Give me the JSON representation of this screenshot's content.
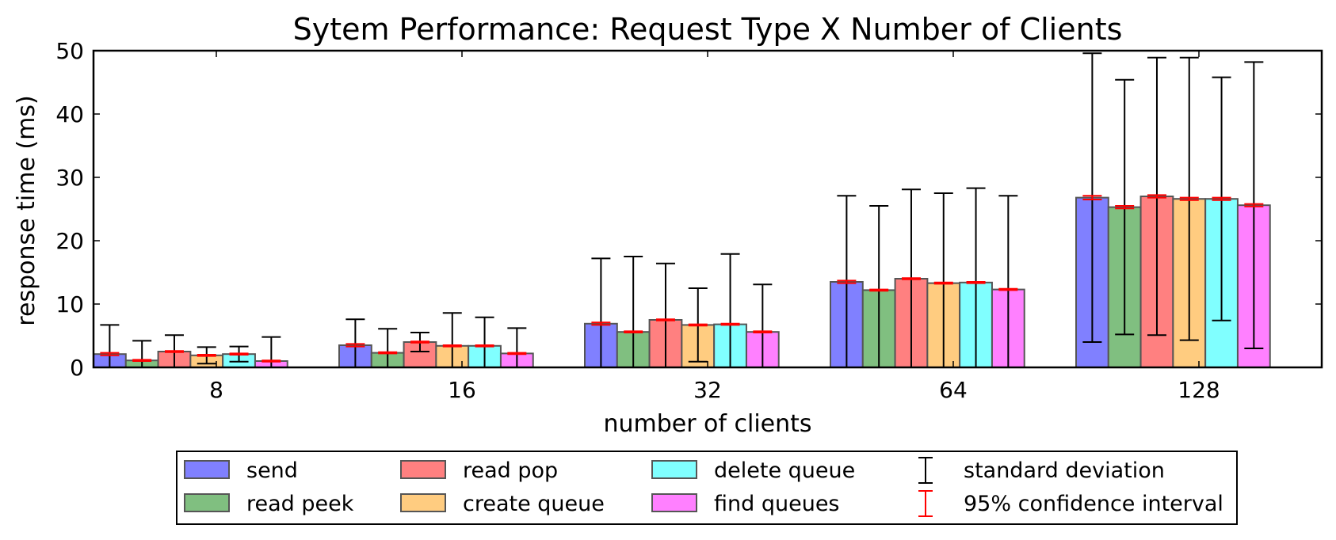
{
  "chart_data": {
    "type": "bar",
    "title": "Sytem Performance: Request Type X Number of Clients",
    "xlabel": "number of clients",
    "ylabel": "response time (ms)",
    "ylim": [
      0,
      50
    ],
    "yticks": [
      "0",
      "10",
      "20",
      "30",
      "40",
      "50"
    ],
    "grid": false,
    "legend_position": "bottom",
    "categories": [
      "8",
      "16",
      "32",
      "64",
      "128"
    ],
    "series": [
      {
        "name": "send",
        "color": "#8080ff",
        "values": [
          2.1,
          3.5,
          6.9,
          13.5,
          26.8
        ],
        "std": [
          4.6,
          4.1,
          10.3,
          13.6,
          22.8
        ],
        "ci95": [
          0.2,
          0.2,
          0.2,
          0.2,
          0.3
        ]
      },
      {
        "name": "read peek",
        "color": "#80bf80",
        "values": [
          1.1,
          2.3,
          5.6,
          12.2,
          25.3
        ],
        "std": [
          3.1,
          3.8,
          11.9,
          13.3,
          20.1
        ],
        "ci95": [
          0.1,
          0.1,
          0.1,
          0.1,
          0.2
        ]
      },
      {
        "name": "read pop",
        "color": "#ff8080",
        "values": [
          2.5,
          4.0,
          7.5,
          14.0,
          27.0
        ],
        "std": [
          2.6,
          1.5,
          8.9,
          14.1,
          21.9
        ],
        "ci95": [
          0.1,
          0.1,
          0.1,
          0.1,
          0.2
        ]
      },
      {
        "name": "create queue",
        "color": "#ffcc80",
        "values": [
          1.9,
          3.4,
          6.7,
          13.3,
          26.6
        ],
        "std": [
          1.3,
          5.2,
          5.8,
          14.2,
          22.3
        ],
        "ci95": [
          0.1,
          0.1,
          0.1,
          0.1,
          0.2
        ]
      },
      {
        "name": "delete queue",
        "color": "#80ffff",
        "values": [
          2.1,
          3.4,
          6.8,
          13.4,
          26.6
        ],
        "std": [
          1.2,
          4.5,
          11.1,
          14.9,
          19.2
        ],
        "ci95": [
          0.1,
          0.1,
          0.1,
          0.1,
          0.2
        ]
      },
      {
        "name": "find queues",
        "color": "#ff80ff",
        "values": [
          1.0,
          2.2,
          5.6,
          12.3,
          25.6
        ],
        "std": [
          3.8,
          4.0,
          7.5,
          14.8,
          22.6
        ],
        "ci95": [
          0.1,
          0.1,
          0.1,
          0.1,
          0.2
        ]
      }
    ],
    "legend_items": [
      {
        "label": "send",
        "kind": "patch",
        "color": "#8080ff"
      },
      {
        "label": "read peek",
        "kind": "patch",
        "color": "#80bf80"
      },
      {
        "label": "read pop",
        "kind": "patch",
        "color": "#ff8080"
      },
      {
        "label": "create queue",
        "kind": "patch",
        "color": "#ffcc80"
      },
      {
        "label": "delete queue",
        "kind": "patch",
        "color": "#80ffff"
      },
      {
        "label": "find queues",
        "kind": "patch",
        "color": "#ff80ff"
      },
      {
        "label": "standard deviation",
        "kind": "errorbar",
        "color": "#000000"
      },
      {
        "label": "95% confidence interval",
        "kind": "errorbar",
        "color": "#ff0000"
      }
    ]
  }
}
